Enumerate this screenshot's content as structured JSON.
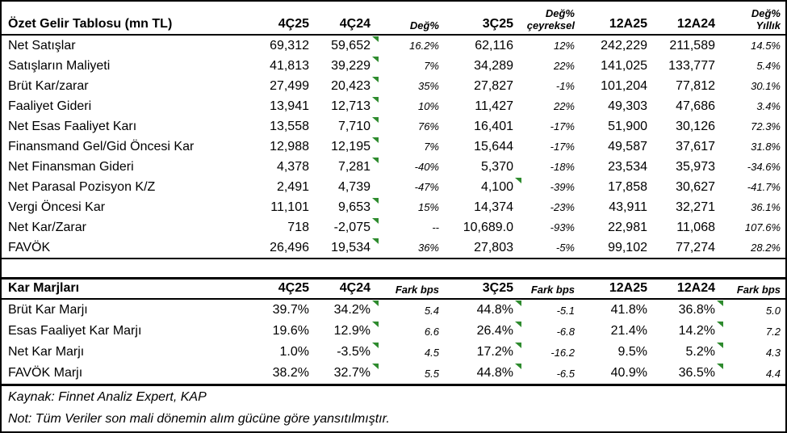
{
  "colors": {
    "flag_green": "#2e8b2e",
    "border": "#000000",
    "background": "#ffffff"
  },
  "income_table": {
    "title": "Özet Gelir Tablosu (mn TL)",
    "headers": [
      {
        "top": "",
        "bottom": "4Ç25",
        "small": false
      },
      {
        "top": "",
        "bottom": "4Ç24",
        "small": false
      },
      {
        "top": "",
        "bottom": "Değ%",
        "small": true
      },
      {
        "top": "",
        "bottom": "3Ç25",
        "small": false
      },
      {
        "top": "Değ%",
        "bottom": "çeyreksel",
        "small": true
      },
      {
        "top": "",
        "bottom": "12A25",
        "small": false
      },
      {
        "top": "",
        "bottom": "12A24",
        "small": false
      },
      {
        "top": "Değ%",
        "bottom": "Yıllık",
        "small": true
      }
    ],
    "small_cols": [
      2,
      4,
      7
    ],
    "rows": [
      {
        "label": "Net Satışlar",
        "values": [
          "69,312",
          "59,652",
          "16.2%",
          "62,116",
          "12%",
          "242,229",
          "211,589",
          "14.5%"
        ],
        "flags": [
          1
        ]
      },
      {
        "label": "Satışların Maliyeti",
        "values": [
          "41,813",
          "39,229",
          "7%",
          "34,289",
          "22%",
          "141,025",
          "133,777",
          "5.4%"
        ],
        "flags": [
          1
        ]
      },
      {
        "label": "Brüt Kar/zarar",
        "values": [
          "27,499",
          "20,423",
          "35%",
          "27,827",
          "-1%",
          "101,204",
          "77,812",
          "30.1%"
        ],
        "flags": [
          1
        ]
      },
      {
        "label": "Faaliyet Gideri",
        "values": [
          "13,941",
          "12,713",
          "10%",
          "11,427",
          "22%",
          "49,303",
          "47,686",
          "3.4%"
        ],
        "flags": [
          1
        ]
      },
      {
        "label": "Net Esas Faaliyet Karı",
        "values": [
          "13,558",
          "7,710",
          "76%",
          "16,401",
          "-17%",
          "51,900",
          "30,126",
          "72.3%"
        ],
        "flags": [
          1
        ]
      },
      {
        "label": "Finansmand Gel/Gid Öncesi Kar",
        "values": [
          "12,988",
          "12,195",
          "7%",
          "15,644",
          "-17%",
          "49,587",
          "37,617",
          "31.8%"
        ],
        "flags": [
          1
        ]
      },
      {
        "label": "Net Finansman Gideri",
        "values": [
          "4,378",
          "7,281",
          "-40%",
          "5,370",
          "-18%",
          "23,534",
          "35,973",
          "-34.6%"
        ],
        "flags": [
          1
        ]
      },
      {
        "label": "Net Parasal Pozisyon K/Z",
        "values": [
          "2,491",
          "4,739",
          "-47%",
          "4,100",
          "-39%",
          "17,858",
          "30,627",
          "-41.7%"
        ],
        "flags": [
          3
        ]
      },
      {
        "label": "Vergi Öncesi Kar",
        "values": [
          "11,101",
          "9,653",
          "15%",
          "14,374",
          "-23%",
          "43,911",
          "32,271",
          "36.1%"
        ],
        "flags": [
          1
        ]
      },
      {
        "label": "Net Kar/Zarar",
        "values": [
          "718",
          "-2,075",
          "--",
          "10,689.0",
          "-93%",
          "22,981",
          "11,068",
          "107.6%"
        ],
        "flags": [
          1
        ]
      },
      {
        "label": "FAVÖK",
        "values": [
          "26,496",
          "19,534",
          "36%",
          "27,803",
          "-5%",
          "99,102",
          "77,274",
          "28.2%"
        ],
        "flags": [
          1
        ]
      }
    ]
  },
  "margins_table": {
    "title": "Kar Marjları",
    "headers": [
      {
        "top": "",
        "bottom": "4Ç25",
        "small": false
      },
      {
        "top": "",
        "bottom": "4Ç24",
        "small": false
      },
      {
        "top": "",
        "bottom": "Fark bps",
        "small": true
      },
      {
        "top": "",
        "bottom": "3Ç25",
        "small": false
      },
      {
        "top": "",
        "bottom": "Fark bps",
        "small": true
      },
      {
        "top": "",
        "bottom": "12A25",
        "small": false
      },
      {
        "top": "",
        "bottom": "12A24",
        "small": false
      },
      {
        "top": "",
        "bottom": "Fark bps",
        "small": true
      }
    ],
    "small_cols": [
      2,
      4,
      7
    ],
    "rows": [
      {
        "label": "Brüt Kar Marjı",
        "values": [
          "39.7%",
          "34.2%",
          "5.4",
          "44.8%",
          "-5.1",
          "41.8%",
          "36.8%",
          "5.0"
        ],
        "flags": [
          1,
          3,
          6
        ]
      },
      {
        "label": "Esas Faaliyet Kar Marjı",
        "values": [
          "19.6%",
          "12.9%",
          "6.6",
          "26.4%",
          "-6.8",
          "21.4%",
          "14.2%",
          "7.2"
        ],
        "flags": [
          1,
          3,
          6
        ]
      },
      {
        "label": "Net Kar Marjı",
        "values": [
          "1.0%",
          "-3.5%",
          "4.5",
          "17.2%",
          "-16.2",
          "9.5%",
          "5.2%",
          "4.3"
        ],
        "flags": [
          1,
          3,
          6
        ]
      },
      {
        "label": "FAVÖK Marjı",
        "values": [
          "38.2%",
          "32.7%",
          "5.5",
          "44.8%",
          "-6.5",
          "40.9%",
          "36.5%",
          "4.4"
        ],
        "flags": [
          1,
          3,
          6
        ]
      }
    ]
  },
  "footer": {
    "source": "Kaynak: Finnet Analiz Expert, KAP",
    "note": "Not: Tüm Veriler son mali dönemin alım gücüne göre yansıtılmıştır."
  }
}
